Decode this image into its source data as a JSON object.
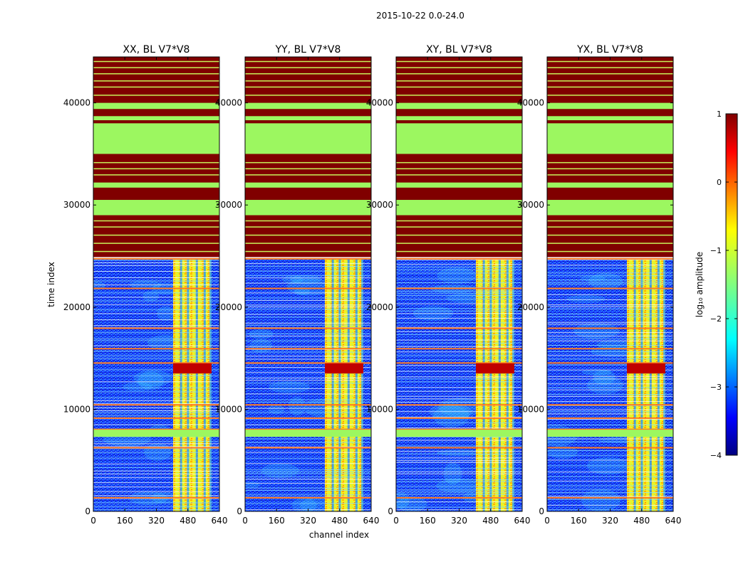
{
  "figure": {
    "suptitle": "2015-10-22 0.0-24.0"
  },
  "chart_data": {
    "type": "heatmap",
    "panels": [
      {
        "title": "XX, BL V7*V8"
      },
      {
        "title": "YY, BL V7*V8"
      },
      {
        "title": "XY, BL V7*V8"
      },
      {
        "title": "YX, BL V7*V8"
      }
    ],
    "xlabel": "channel index",
    "ylabel": "time index",
    "xlim": [
      0,
      640
    ],
    "ylim": [
      0,
      44500
    ],
    "xticks": [
      "0",
      "160",
      "320",
      "480",
      "640"
    ],
    "xtick_values": [
      0,
      160,
      320,
      480,
      640
    ],
    "yticks": [
      "0",
      "10000",
      "20000",
      "30000",
      "40000"
    ],
    "ytick_values": [
      0,
      10000,
      20000,
      30000,
      40000
    ],
    "colorbar": {
      "label": "log₁₀ amplitude",
      "range": [
        -4,
        1
      ],
      "ticks": [
        "1",
        "0",
        "−1",
        "−2",
        "−3",
        "−4"
      ],
      "tick_values": [
        1,
        0,
        -1,
        -2,
        -3,
        -4
      ],
      "colormap": "jet"
    },
    "data_regions": [
      {
        "label": "flagged/no data (high values)",
        "time_range": [
          24800,
          44500
        ],
        "value": 1
      },
      {
        "label": "flagged/no data (low values)",
        "time_range": [
          35000,
          38000
        ],
        "value": -1
      },
      {
        "label": "flagged/no data (low values)",
        "time_range": [
          29000,
          30500
        ],
        "value": -1
      },
      {
        "label": "background noise",
        "channel_range": [
          0,
          405
        ],
        "time_range": [
          0,
          24700
        ],
        "value": -3
      },
      {
        "label": "bright channel band",
        "channel_range": [
          405,
          600
        ],
        "time_range": [
          0,
          24700
        ],
        "value": -0.8
      },
      {
        "label": "flagged horizontal band",
        "time_range": [
          7300,
          8000
        ],
        "value": -1
      },
      {
        "label": "bright burst",
        "channel_range": [
          405,
          600
        ],
        "time_range": [
          13500,
          14500
        ],
        "value": 0.8
      }
    ]
  }
}
